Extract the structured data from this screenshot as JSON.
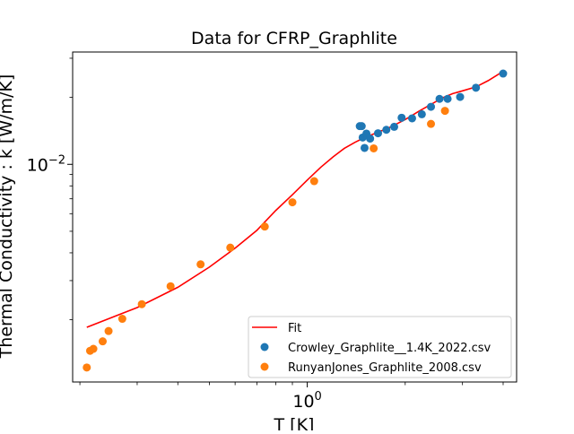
{
  "chart_data": {
    "type": "scatter",
    "title": "Data for CFRP_Graphlite",
    "xlabel": "T [K]",
    "ylabel": "Thermal Conductivity : k [W/m/K]",
    "xscale": "log",
    "yscale": "log",
    "xlim": [
      0.19,
      4.4
    ],
    "ylim": [
      0.00105,
      0.032
    ],
    "x_tick_labels": [
      {
        "value": 1,
        "label": "10^0"
      }
    ],
    "y_tick_labels": [
      {
        "value": 0.01,
        "label": "10^-2"
      }
    ],
    "grid": false,
    "legend_position": "lower-right",
    "colors": {
      "fit": "#ff0000",
      "crowley": "#1f77b4",
      "runyan": "#ff7f0e"
    },
    "series": [
      {
        "name": "Fit",
        "kind": "line",
        "x": [
          0.21,
          0.3,
          0.4,
          0.5,
          0.6,
          0.7,
          0.8,
          0.9,
          1.0,
          1.1,
          1.2,
          1.3,
          1.4,
          1.5,
          1.6,
          1.7,
          1.8,
          1.9,
          2.0,
          2.2,
          2.4,
          2.6,
          2.8,
          3.0,
          3.3,
          3.6,
          4.0
        ],
        "y": [
          0.00185,
          0.00227,
          0.0028,
          0.00345,
          0.0042,
          0.00505,
          0.0062,
          0.0073,
          0.0085,
          0.0097,
          0.0108,
          0.0118,
          0.01255,
          0.0132,
          0.0137,
          0.0142,
          0.0147,
          0.0153,
          0.0159,
          0.0173,
          0.0186,
          0.0199,
          0.0208,
          0.0214,
          0.0223,
          0.0238,
          0.0262
        ]
      },
      {
        "name": "Crowley_Graphlite__1.4K_2022.csv",
        "kind": "scatter",
        "x": [
          1.45,
          1.47,
          1.48,
          1.5,
          1.52,
          1.56,
          1.65,
          1.75,
          1.85,
          1.95,
          2.1,
          2.25,
          2.4,
          2.55,
          2.7,
          2.95,
          3.3,
          4.0
        ],
        "y": [
          0.01485,
          0.01485,
          0.0132,
          0.01185,
          0.01375,
          0.01305,
          0.0138,
          0.0143,
          0.01475,
          0.0162,
          0.0161,
          0.0168,
          0.01815,
          0.0197,
          0.0197,
          0.0201,
          0.0221,
          0.0256
        ]
      },
      {
        "name": "RunyanJones_Graphlite_2008.csv",
        "kind": "scatter",
        "x": [
          0.21,
          0.215,
          0.22,
          0.235,
          0.245,
          0.27,
          0.31,
          0.38,
          0.47,
          0.58,
          0.74,
          0.9,
          1.05,
          1.6,
          2.4,
          2.65
        ],
        "y": [
          0.00122,
          0.00145,
          0.00148,
          0.0016,
          0.00178,
          0.00202,
          0.00235,
          0.00283,
          0.00355,
          0.00422,
          0.00525,
          0.00675,
          0.0084,
          0.0118,
          0.0152,
          0.0174
        ]
      }
    ]
  }
}
